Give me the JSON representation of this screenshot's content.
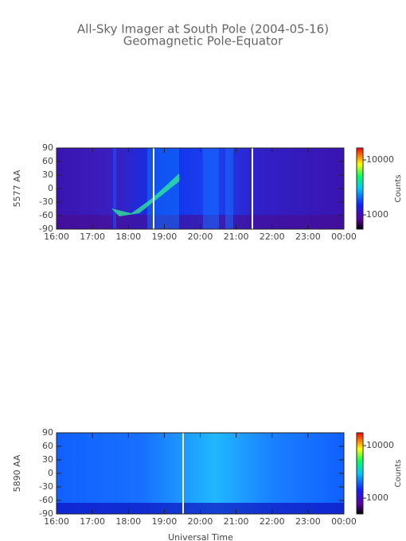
{
  "title": "All-Sky Imager at South Pole (2004-05-16)",
  "subtitle": "Geomagnetic Pole-Equator",
  "x_label": "Universal Time",
  "chart_data": [
    {
      "type": "heatmap",
      "y_label": "5577 AA",
      "colorbar_label": "Counts",
      "colorbar_scale": "log",
      "clim": [
        550,
        16500
      ],
      "cticks": [
        1000,
        10000
      ],
      "xlim": [
        16,
        24
      ],
      "xticks": [
        {
          "value": 16,
          "label": "16:00"
        },
        {
          "value": 17,
          "label": "17:00"
        },
        {
          "value": 18,
          "label": "18:00"
        },
        {
          "value": 19,
          "label": "19:00"
        },
        {
          "value": 20,
          "label": "20:00"
        },
        {
          "value": 21,
          "label": "21:00"
        },
        {
          "value": 22,
          "label": "22:00"
        },
        {
          "value": 23,
          "label": "23:00"
        },
        {
          "value": 24,
          "label": "00:00"
        }
      ],
      "ylim": [
        -90,
        90
      ],
      "yticks": [
        -90,
        -60,
        -30,
        0,
        30,
        60,
        90
      ]
    },
    {
      "type": "heatmap",
      "y_label": "5890 AA",
      "colorbar_label": "Counts",
      "colorbar_scale": "log",
      "clim": [
        500,
        17500
      ],
      "cticks": [
        1000,
        10000
      ],
      "xlim": [
        16,
        24
      ],
      "xticks": [
        {
          "value": 16,
          "label": "16:00"
        },
        {
          "value": 17,
          "label": "17:00"
        },
        {
          "value": 18,
          "label": "18:00"
        },
        {
          "value": 19,
          "label": "19:00"
        },
        {
          "value": 20,
          "label": "20:00"
        },
        {
          "value": 21,
          "label": "21:00"
        },
        {
          "value": 22,
          "label": "22:00"
        },
        {
          "value": 23,
          "label": "23:00"
        },
        {
          "value": 24,
          "label": "00:00"
        }
      ],
      "ylim": [
        -90,
        90
      ],
      "yticks": [
        -90,
        -60,
        -30,
        0,
        30,
        60,
        90
      ]
    }
  ]
}
